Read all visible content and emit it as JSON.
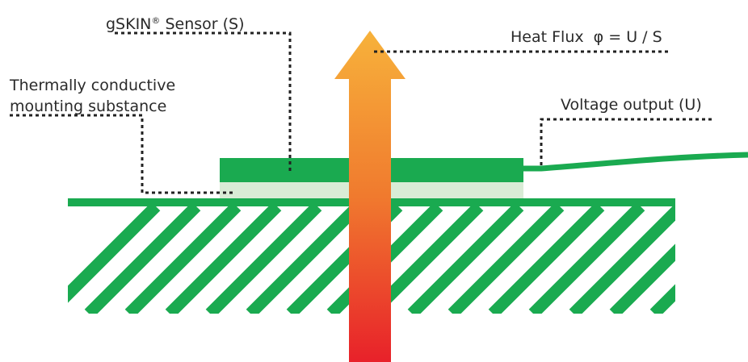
{
  "labels": {
    "sensor_prefix": "gSKIN",
    "sensor_mark": "®",
    "sensor_suffix": " Sensor (S)",
    "heat_flux": "Heat Flux  φ = U / S",
    "mounting_line1": "Thermally conductive",
    "mounting_line2": "mounting substance",
    "voltage": "Voltage output (U)"
  },
  "colors": {
    "sensor_green": "#1aaa50",
    "mounting_layer": "#d9ecd6",
    "hatch_green": "#1aaa50",
    "arrow_top": "#f7b23b",
    "arrow_bottom": "#e8212a",
    "leader_line": "#222222",
    "text": "#2a2a2a"
  }
}
